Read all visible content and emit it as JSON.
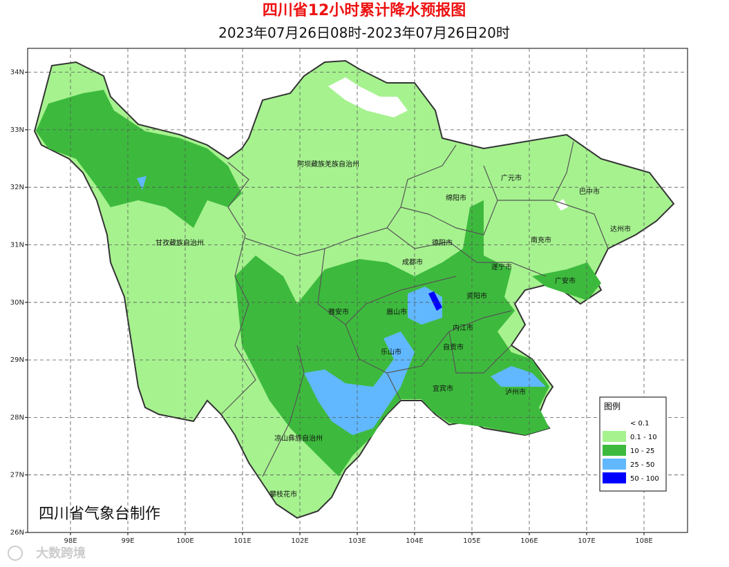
{
  "title": "四川省12小时累计降水预报图",
  "subtitle": "2023年07月26日08时-2023年07月26日20时",
  "map": {
    "lon_ticks": [
      {
        "value": 98,
        "label": "98E"
      },
      {
        "value": 99,
        "label": "99E"
      },
      {
        "value": 100,
        "label": "100E"
      },
      {
        "value": 101,
        "label": "101E"
      },
      {
        "value": 102,
        "label": "102E"
      },
      {
        "value": 103,
        "label": "103E"
      },
      {
        "value": 104,
        "label": "104E"
      },
      {
        "value": 105,
        "label": "105E"
      },
      {
        "value": 106,
        "label": "106E"
      },
      {
        "value": 107,
        "label": "107E"
      },
      {
        "value": 108,
        "label": "108E"
      }
    ],
    "lat_ticks": [
      {
        "value": 26,
        "label": "26N"
      },
      {
        "value": 27,
        "label": "27N"
      },
      {
        "value": 28,
        "label": "28N"
      },
      {
        "value": 29,
        "label": "29N"
      },
      {
        "value": 30,
        "label": "30N"
      },
      {
        "value": 31,
        "label": "31N"
      },
      {
        "value": 32,
        "label": "32N"
      },
      {
        "value": 33,
        "label": "33N"
      },
      {
        "value": 34,
        "label": "34N"
      }
    ],
    "regions": [
      "阿坝藏族羌族自治州",
      "甘孜藏族自治州",
      "广元市",
      "巴中市",
      "绵阳市",
      "达州市",
      "南充市",
      "德阳市",
      "成都市",
      "遂宁市",
      "广安市",
      "雅安市",
      "眉山市",
      "资阳市",
      "内江市",
      "乐山市",
      "自贡市",
      "宜宾市",
      "泸州市",
      "凉山彝族自治州",
      "攀枝花市"
    ]
  },
  "legend": {
    "title": "图例",
    "items": [
      {
        "label": "< 0.1",
        "color": "#ffffff"
      },
      {
        "label": "0.1 - 10",
        "color": "#a6f28f"
      },
      {
        "label": "10 - 25",
        "color": "#3dba3d"
      },
      {
        "label": "25 - 50",
        "color": "#61b8ff"
      },
      {
        "label": "50 - 100",
        "color": "#0000ff"
      }
    ]
  },
  "credit": "四川省气象台制作",
  "watermark": "大数跨境"
}
